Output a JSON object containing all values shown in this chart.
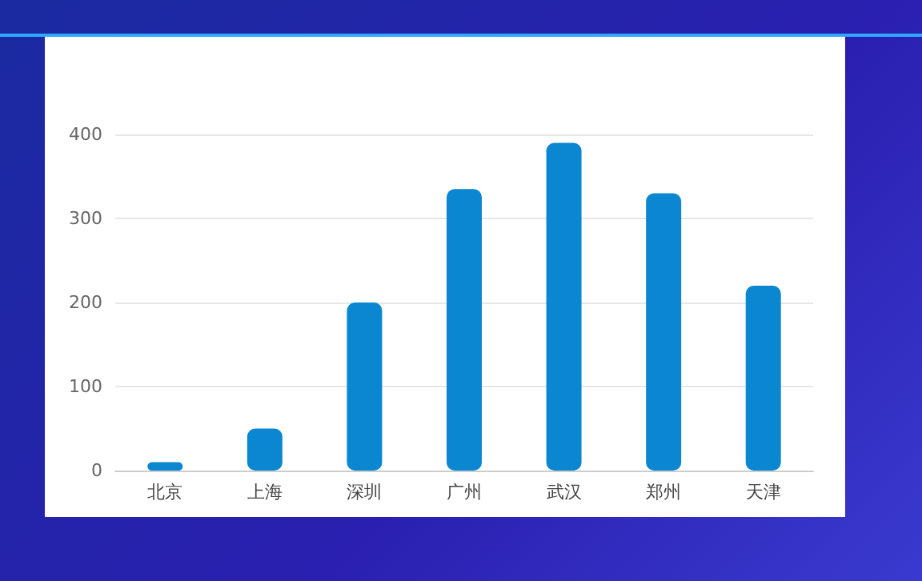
{
  "chart_data": {
    "type": "bar",
    "categories": [
      "北京",
      "上海",
      "深圳",
      "广州",
      "武汉",
      "郑州",
      "天津"
    ],
    "values": [
      10,
      50,
      200,
      335,
      390,
      330,
      220
    ],
    "color": "#0a87d0",
    "ylim": [
      0,
      400
    ],
    "yticks": [
      0,
      100,
      200,
      300,
      400
    ],
    "grid": "y"
  }
}
